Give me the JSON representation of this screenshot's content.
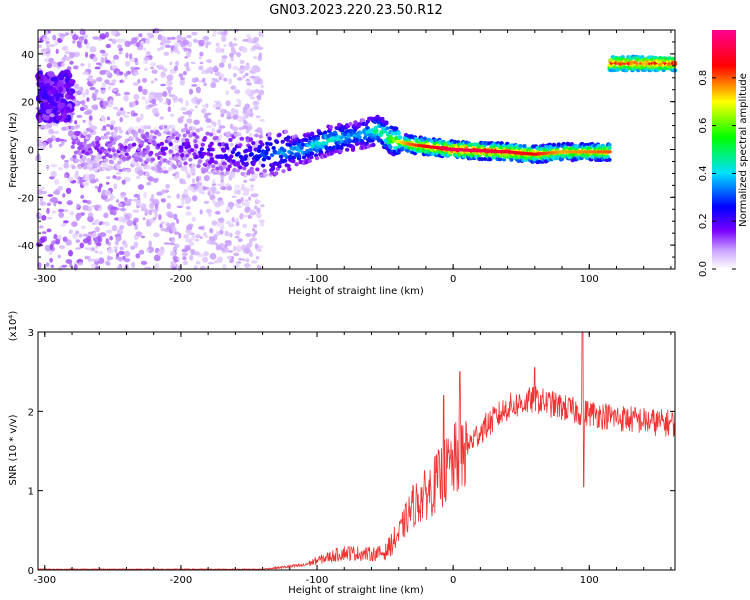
{
  "figure": {
    "title": "GN03.2023.220.23.50.R12"
  },
  "chart_data": [
    {
      "type": "heatmap",
      "xlabel": "Height of straight line (km)",
      "ylabel": "Frequency (Hz)",
      "xlim": [
        -305,
        163
      ],
      "ylim": [
        -50,
        50
      ],
      "xticks": [
        -300,
        -200,
        -100,
        0,
        100
      ],
      "xtick_labels": [
        "-300",
        "-200",
        "-100",
        "0",
        "100"
      ],
      "yticks": [
        -40,
        -20,
        0,
        20,
        40
      ],
      "ytick_labels": [
        "-40",
        "-20",
        "0",
        "20",
        "40"
      ],
      "colorbar": {
        "label": "Normalized spectral amplitude",
        "range": [
          0,
          1
        ],
        "ticks": [
          0.0,
          0.2,
          0.4,
          0.6,
          0.8
        ],
        "tick_labels": [
          "0.0",
          "0.2",
          "0.4",
          "0.6",
          "0.8"
        ],
        "colormap": [
          "#ffffff",
          "#7a00ff",
          "#0000ff",
          "#00e0ff",
          "#00ff00",
          "#ffff00",
          "#ff0000",
          "#ff0090"
        ]
      },
      "ridge": {
        "description_points_x": [
          -280,
          -250,
          -200,
          -150,
          -110,
          -90,
          -70,
          -55,
          -45,
          -30,
          0,
          40,
          60,
          80,
          115
        ],
        "description_points_y": [
          1,
          0,
          1,
          -3,
          0,
          4,
          6,
          8,
          4,
          2,
          0,
          -1,
          -2,
          -1,
          -1
        ],
        "amplitude": [
          0.15,
          0.12,
          0.18,
          0.25,
          0.4,
          0.45,
          0.35,
          0.5,
          0.6,
          0.75,
          0.9,
          0.85,
          0.8,
          0.7,
          0.75
        ]
      },
      "secondary_band": {
        "x_range": [
          115,
          163
        ],
        "y": 36,
        "amplitude": 0.85
      },
      "low_cluster": {
        "x_range": [
          -305,
          -280
        ],
        "y_range": [
          12,
          32
        ],
        "amplitude": 0.12
      },
      "noise_region_x": [
        -305,
        -140
      ],
      "grid": false
    },
    {
      "type": "line",
      "xlabel": "Height of straight line (km)",
      "ylabel": "SNR (10 * v/v)",
      "yscale_label": "(x10⁴)",
      "xlim": [
        -305,
        163
      ],
      "ylim": [
        0,
        3
      ],
      "xticks": [
        -300,
        -200,
        -100,
        0,
        100
      ],
      "xtick_labels": [
        "-300",
        "-200",
        "-100",
        "0",
        "100"
      ],
      "yticks": [
        0,
        1,
        2,
        3
      ],
      "ytick_labels": [
        "0",
        "1",
        "2",
        "3"
      ],
      "series_color": "#ee3333",
      "envelope": {
        "x": [
          -305,
          -200,
          -140,
          -110,
          -100,
          -80,
          -60,
          -50,
          -40,
          -30,
          -20,
          -10,
          0,
          10,
          20,
          30,
          40,
          50,
          60,
          70,
          80,
          90,
          100,
          110,
          120,
          130,
          140,
          150,
          163
        ],
        "y": [
          0.01,
          0.01,
          0.01,
          0.06,
          0.12,
          0.22,
          0.2,
          0.22,
          0.45,
          0.8,
          0.95,
          1.15,
          1.35,
          1.55,
          1.75,
          1.9,
          2.05,
          2.1,
          2.15,
          2.1,
          2.05,
          2.0,
          1.98,
          1.95,
          1.92,
          1.9,
          1.88,
          1.86,
          1.85
        ]
      },
      "spikes": [
        {
          "x": -7,
          "y": 2.2
        },
        {
          "x": 5,
          "y": 2.5
        },
        {
          "x": 60,
          "y": 2.55
        },
        {
          "x": 95,
          "y": 3.0
        },
        {
          "x": 96,
          "y": 1.05
        }
      ],
      "grid": false
    }
  ]
}
